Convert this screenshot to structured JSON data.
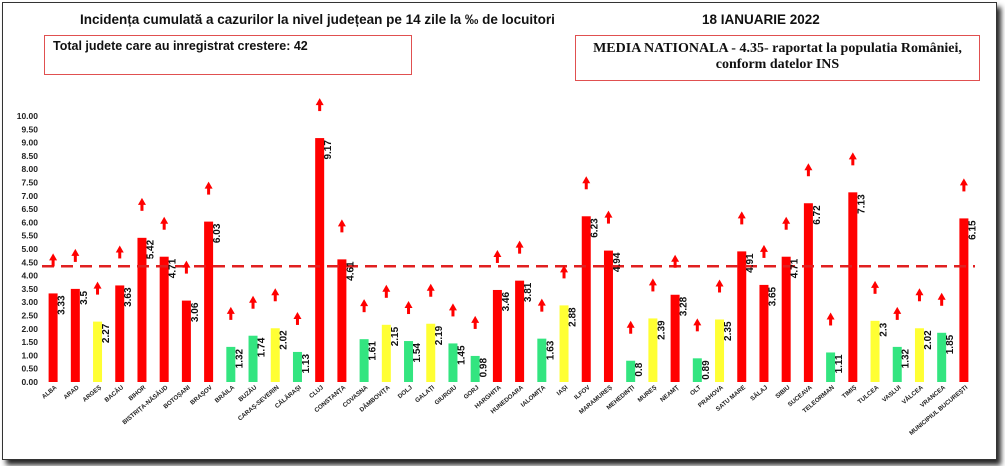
{
  "header": {
    "title": "Incidența cumulată a cazurilor la nivel județean pe 14 zile la ‰ de locuitori",
    "date": "18 IANUARIE 2022",
    "total_box": "Total judete care au inregistrat crestere: 42",
    "media_line1": "MEDIA NATIONALA - 4.35-  raportat la populatia României,",
    "media_line2": "conform datelor INS"
  },
  "colors": {
    "red": "#ff0000",
    "yellow": "#ffff33",
    "green": "#33e580",
    "arrow": "#ff0000",
    "reference_line": "#e02020"
  },
  "chart_data": {
    "type": "bar",
    "ylim": [
      0,
      10
    ],
    "yticks": [
      "0.00",
      "0.50",
      "1.00",
      "1.50",
      "2.00",
      "2.50",
      "3.00",
      "3.50",
      "4.00",
      "4.50",
      "5.00",
      "5.50",
      "6.00",
      "6.50",
      "7.00",
      "7.50",
      "8.00",
      "8.50",
      "9.00",
      "9.50",
      "10.00"
    ],
    "reference_line": 4.35,
    "bars": [
      {
        "label": "ALBA",
        "value": 3.33,
        "value_text": "3.33",
        "color": "red",
        "trend": "up"
      },
      {
        "label": "ARAD",
        "value": 3.5,
        "value_text": "3.5",
        "color": "red",
        "trend": "up"
      },
      {
        "label": "ARGEȘ",
        "value": 2.27,
        "value_text": "2.27",
        "color": "yellow",
        "trend": "up"
      },
      {
        "label": "BACĂU",
        "value": 3.63,
        "value_text": "3.63",
        "color": "red",
        "trend": "up"
      },
      {
        "label": "BIHOR",
        "value": 5.42,
        "value_text": "5.42",
        "color": "red",
        "trend": "up"
      },
      {
        "label": "BISTRIȚA-NĂSĂUD",
        "value": 4.71,
        "value_text": "4.71",
        "color": "red",
        "trend": "up"
      },
      {
        "label": "BOTOȘANI",
        "value": 3.06,
        "value_text": "3.06",
        "color": "red",
        "trend": "up"
      },
      {
        "label": "BRAȘOV",
        "value": 6.03,
        "value_text": "6.03",
        "color": "red",
        "trend": "up"
      },
      {
        "label": "BRĂILA",
        "value": 1.32,
        "value_text": "1.32",
        "color": "green",
        "trend": "up"
      },
      {
        "label": "BUZĂU",
        "value": 1.74,
        "value_text": "1.74",
        "color": "green",
        "trend": "up"
      },
      {
        "label": "CARAȘ-SEVERIN",
        "value": 2.02,
        "value_text": "2.02",
        "color": "yellow",
        "trend": "up"
      },
      {
        "label": "CĂLĂRAȘI",
        "value": 1.13,
        "value_text": "1.13",
        "color": "green",
        "trend": "up"
      },
      {
        "label": "CLUJ",
        "value": 9.17,
        "value_text": "9.17",
        "color": "red",
        "trend": "up"
      },
      {
        "label": "CONSTANȚA",
        "value": 4.61,
        "value_text": "4.61",
        "color": "red",
        "trend": "up"
      },
      {
        "label": "COVASNA",
        "value": 1.61,
        "value_text": "1.61",
        "color": "green",
        "trend": "up"
      },
      {
        "label": "DÂMBOVIȚA",
        "value": 2.15,
        "value_text": "2.15",
        "color": "yellow",
        "trend": "up"
      },
      {
        "label": "DOLJ",
        "value": 1.54,
        "value_text": "1.54",
        "color": "green",
        "trend": "up"
      },
      {
        "label": "GALAȚI",
        "value": 2.19,
        "value_text": "2.19",
        "color": "yellow",
        "trend": "up"
      },
      {
        "label": "GIURGIU",
        "value": 1.45,
        "value_text": "1.45",
        "color": "green",
        "trend": "up"
      },
      {
        "label": "GORJ",
        "value": 0.98,
        "value_text": "0.98",
        "color": "green",
        "trend": "up"
      },
      {
        "label": "HARGHITA",
        "value": 3.46,
        "value_text": "3.46",
        "color": "red",
        "trend": "up"
      },
      {
        "label": "HUNEDOARA",
        "value": 3.81,
        "value_text": "3.81",
        "color": "red",
        "trend": "up"
      },
      {
        "label": "IALOMIȚA",
        "value": 1.63,
        "value_text": "1.63",
        "color": "green",
        "trend": "up"
      },
      {
        "label": "IAȘI",
        "value": 2.88,
        "value_text": "2.88",
        "color": "yellow",
        "trend": "up"
      },
      {
        "label": "ILFOV",
        "value": 6.23,
        "value_text": "6.23",
        "color": "red",
        "trend": "up"
      },
      {
        "label": "MARAMUREȘ",
        "value": 4.94,
        "value_text": "4.94",
        "color": "red",
        "trend": "up"
      },
      {
        "label": "MEHEDINȚI",
        "value": 0.8,
        "value_text": "0.8",
        "color": "green",
        "trend": "up"
      },
      {
        "label": "MUREȘ",
        "value": 2.39,
        "value_text": "2.39",
        "color": "yellow",
        "trend": "up"
      },
      {
        "label": "NEAMȚ",
        "value": 3.28,
        "value_text": "3.28",
        "color": "red",
        "trend": "up"
      },
      {
        "label": "OLT",
        "value": 0.89,
        "value_text": "0.89",
        "color": "green",
        "trend": "up"
      },
      {
        "label": "PRAHOVA",
        "value": 2.35,
        "value_text": "2.35",
        "color": "yellow",
        "trend": "up"
      },
      {
        "label": "SATU MARE",
        "value": 4.91,
        "value_text": "4.91",
        "color": "red",
        "trend": "up"
      },
      {
        "label": "SĂLAJ",
        "value": 3.65,
        "value_text": "3.65",
        "color": "red",
        "trend": "up"
      },
      {
        "label": "SIBIU",
        "value": 4.71,
        "value_text": "4.71",
        "color": "red",
        "trend": "up"
      },
      {
        "label": "SUCEAVA",
        "value": 6.72,
        "value_text": "6.72",
        "color": "red",
        "trend": "up"
      },
      {
        "label": "TELEORMAN",
        "value": 1.11,
        "value_text": "1.11",
        "color": "green",
        "trend": "up"
      },
      {
        "label": "TIMIȘ",
        "value": 7.13,
        "value_text": "7.13",
        "color": "red",
        "trend": "up"
      },
      {
        "label": "TULCEA",
        "value": 2.3,
        "value_text": "2.3",
        "color": "yellow",
        "trend": "up"
      },
      {
        "label": "VASLUI",
        "value": 1.32,
        "value_text": "1.32",
        "color": "green",
        "trend": "up"
      },
      {
        "label": "VÂLCEA",
        "value": 2.02,
        "value_text": "2.02",
        "color": "yellow",
        "trend": "up"
      },
      {
        "label": "VRANCEA",
        "value": 1.85,
        "value_text": "1.85",
        "color": "green",
        "trend": "up"
      },
      {
        "label": "MUNICIPIUL BUCUREȘTI",
        "value": 6.15,
        "value_text": "6.15",
        "color": "red",
        "trend": "up"
      }
    ]
  }
}
